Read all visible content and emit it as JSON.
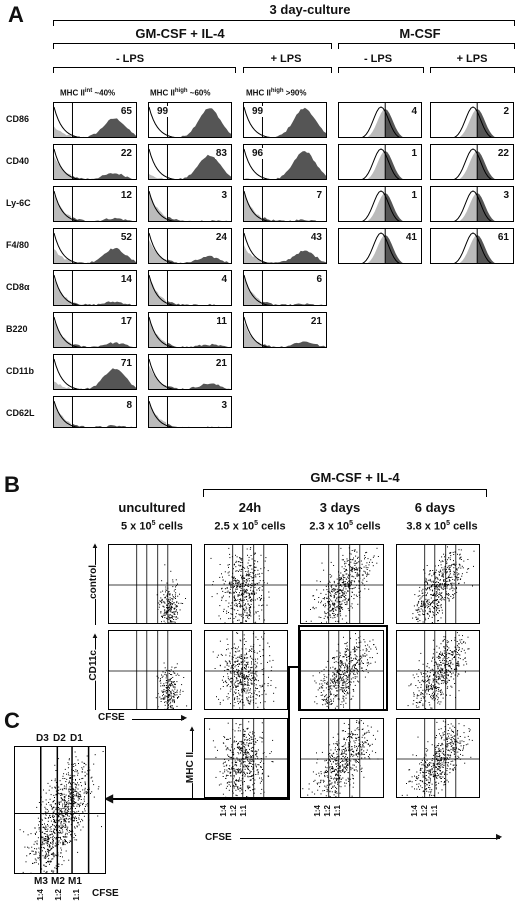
{
  "panelA": {
    "letter": "A",
    "title": "3 day-culture",
    "gm": "GM-CSF + IL-4",
    "mcsf": "M-CSF",
    "minus_lps": "- LPS",
    "plus_lps": "+ LPS",
    "mhc1": "MHC II",
    "mhc1sup": "int",
    "mhc1tail": " ~40%",
    "mhc2": "MHC II",
    "mhc2sup": "high",
    "mhc2tail": " ~60%",
    "mhc3": "MHC II",
    "mhc3sup": "high",
    "mhc3tail": " >90%",
    "rows": [
      "CD86",
      "CD40",
      "Ly-6C",
      "F4/80",
      "CD8α",
      "B220",
      "CD11b",
      "CD62L"
    ],
    "values": [
      [
        "65",
        "99",
        "99",
        "4",
        "2"
      ],
      [
        "22",
        "83",
        "96",
        "1",
        "22"
      ],
      [
        "12",
        "3",
        "7",
        "1",
        "3"
      ],
      [
        "52",
        "24",
        "43",
        "41",
        "61"
      ],
      [
        "14",
        "4",
        "6",
        "",
        ""
      ],
      [
        "17",
        "11",
        "21",
        "",
        ""
      ],
      [
        "71",
        "21",
        "",
        "",
        ""
      ],
      [
        "8",
        "3",
        "",
        "",
        ""
      ]
    ]
  },
  "panelB": {
    "letter": "B",
    "gm": "GM-CSF + IL-4",
    "uncultured": "uncultured",
    "cols": [
      "24h",
      "3 days",
      "6 days"
    ],
    "counts": [
      "5 x 10",
      "2.5 x 10",
      "2.3 x 10",
      "3.8 x 10"
    ],
    "count_exp": "5",
    "count_unit": " cells",
    "ylab_control": "control",
    "ylab_cd11c": "CD11c",
    "ylab_mhc": "MHC II",
    "xlab": "CFSE",
    "ratios": [
      "1:4",
      "1:2",
      "1:1"
    ]
  },
  "panelC": {
    "letter": "C",
    "top": [
      "D3",
      "D2",
      "D1"
    ],
    "bottom": [
      "M3",
      "M2",
      "M1"
    ],
    "ratios": [
      "1:4",
      "1:2",
      "1:1"
    ],
    "xlab": "CFSE"
  }
}
